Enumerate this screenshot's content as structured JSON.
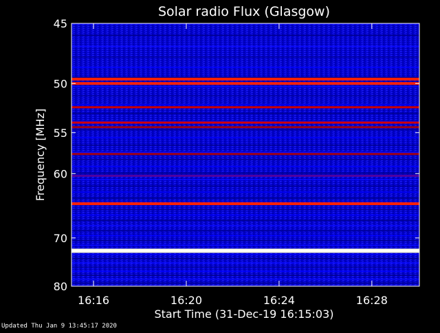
{
  "chart_data": {
    "type": "heatmap",
    "title": "Solar radio Flux (Glasgow)",
    "xlabel": "Start Time (31-Dec-19 16:15:03)",
    "ylabel": "Frequency [MHz]",
    "x_ticks": [
      "16:16",
      "16:20",
      "16:24",
      "16:28"
    ],
    "x_tick_minutes": [
      0.95,
      4.95,
      8.95,
      12.95
    ],
    "xlim_minutes": [
      0,
      15.0
    ],
    "y_ticks": [
      45,
      50,
      55,
      60,
      70,
      80
    ],
    "ylim": [
      45,
      80
    ],
    "scale": "reciprocal",
    "colormap": [
      "#000080",
      "#0000ff",
      "#a00000",
      "#ff0000",
      "#ffff80",
      "#ffffff"
    ],
    "bands": [
      {
        "freq": 49.6,
        "level": 0.85
      },
      {
        "freq": 50.0,
        "level": 0.7
      },
      {
        "freq": 52.3,
        "level": 0.55
      },
      {
        "freq": 53.9,
        "level": 0.5
      },
      {
        "freq": 54.4,
        "level": 0.45
      },
      {
        "freq": 57.5,
        "level": 0.35
      },
      {
        "freq": 60.3,
        "level": 0.25
      },
      {
        "freq": 64.3,
        "level": 0.75
      },
      {
        "freq": 72.4,
        "level": 1.0
      }
    ]
  },
  "footer": {
    "updated_text": "Updated Thu Jan  9 13:45:17 2020"
  }
}
